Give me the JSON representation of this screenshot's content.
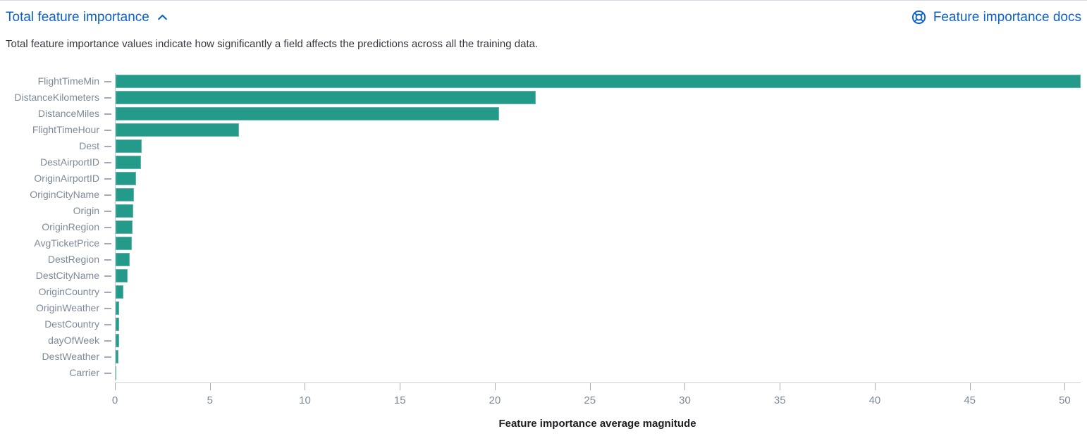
{
  "panel": {
    "title": "Total feature importance",
    "description": "Total feature importance values indicate how significantly a field affects the predictions across all the training data.",
    "docs_link_label": "Feature importance docs"
  },
  "icons": {
    "collapse": "chevron-up-icon",
    "docs": "lifebuoy-help-icon"
  },
  "colors": {
    "bar": "#239a8a",
    "link": "#0d62c9",
    "axis_label": "#7e8a9a",
    "axis_line": "#cbd0de",
    "tick_mark": "#a2abbd",
    "axis_title_text": "#1d1e24"
  },
  "chart_data": {
    "type": "bar",
    "orientation": "horizontal",
    "title": "Total feature importance",
    "categories": [
      "FlightTimeMin",
      "DistanceKilometers",
      "DistanceMiles",
      "FlightTimeHour",
      "Dest",
      "DestAirportID",
      "OriginAirportID",
      "OriginCityName",
      "Origin",
      "OriginRegion",
      "AvgTicketPrice",
      "DestRegion",
      "DestCityName",
      "OriginCountry",
      "OriginWeather",
      "DestCountry",
      "dayOfWeek",
      "DestWeather",
      "Carrier"
    ],
    "values": [
      50.8,
      22.1,
      20.2,
      6.5,
      1.37,
      1.33,
      1.07,
      0.96,
      0.93,
      0.89,
      0.85,
      0.74,
      0.63,
      0.41,
      0.2,
      0.19,
      0.17,
      0.15,
      0.04
    ],
    "xlabel": "Feature importance average magnitude",
    "ylabel": "",
    "xticks": [
      0,
      5,
      10,
      15,
      20,
      25,
      30,
      35,
      40,
      45,
      50
    ],
    "xlim": [
      0,
      50.8
    ],
    "grid": false,
    "legend": "none",
    "bar_color": "#239a8a"
  }
}
